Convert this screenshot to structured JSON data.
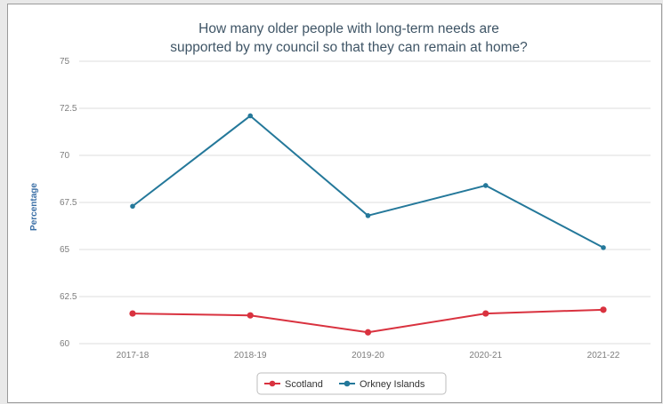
{
  "chart_data": {
    "type": "line",
    "title_lines": [
      "How many older people with long-term needs are",
      "supported by my council so that they can remain at home?"
    ],
    "ylabel": "Percentage",
    "xlabel": "",
    "categories": [
      "2017-18",
      "2018-19",
      "2019-20",
      "2020-21",
      "2021-22"
    ],
    "ylim": [
      60,
      75
    ],
    "yticks": [
      {
        "value": 60,
        "label": "60"
      },
      {
        "value": 62.5,
        "label": "62.5"
      },
      {
        "value": 65,
        "label": "65"
      },
      {
        "value": 67.5,
        "label": "67.5"
      },
      {
        "value": 70,
        "label": "70"
      },
      {
        "value": 72.5,
        "label": "72.5"
      },
      {
        "value": 75,
        "label": "75"
      }
    ],
    "grid": true,
    "legend_position": "bottom-center",
    "series": [
      {
        "name": "Scotland",
        "color": "#d9323f",
        "values": [
          61.6,
          61.5,
          60.6,
          61.6,
          61.8
        ]
      },
      {
        "name": "Orkney Islands",
        "color": "#24789a",
        "values": [
          67.3,
          72.1,
          66.8,
          68.4,
          65.1
        ]
      }
    ]
  }
}
